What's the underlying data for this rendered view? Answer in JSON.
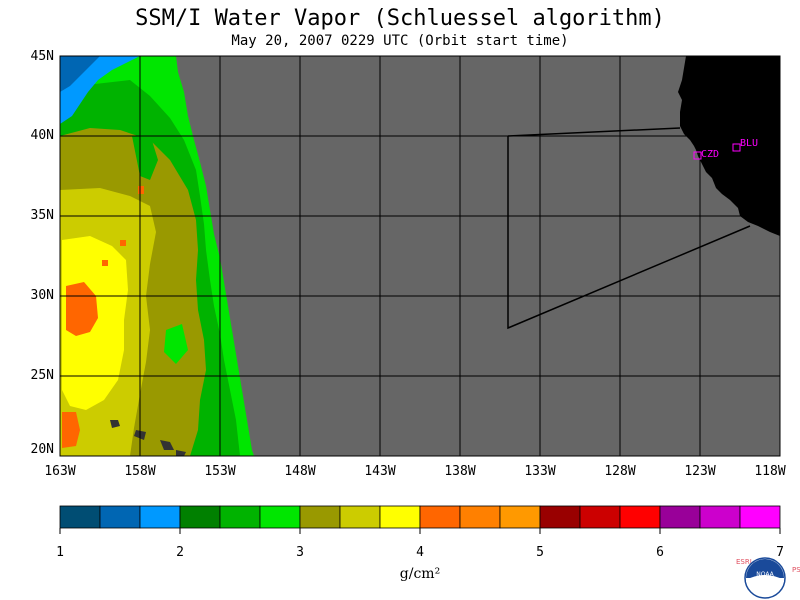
{
  "title": "SSM/I Water Vapor (Schluessel algorithm)",
  "subtitle": "May 20, 2007  0229 UTC  (Orbit start time)",
  "lat_labels": [
    "45N",
    "40N",
    "35N",
    "30N",
    "25N",
    "20N"
  ],
  "lon_labels": [
    "163W",
    "158W",
    "153W",
    "148W",
    "143W",
    "138W",
    "133W",
    "128W",
    "123W",
    "118W"
  ],
  "colorbar": {
    "colors": [
      "#004d73",
      "#0066b3",
      "#0099ff",
      "#008000",
      "#00b300",
      "#00e600",
      "#999900",
      "#cccc00",
      "#ffff00",
      "#ff6600",
      "#ff8000",
      "#ff9900",
      "#990000",
      "#cc0000",
      "#ff0000",
      "#990099",
      "#cc00cc",
      "#ff00ff"
    ],
    "tick_labels": [
      "1",
      "2",
      "3",
      "4",
      "5",
      "6",
      "7"
    ],
    "unit": "g/cm²"
  },
  "stations": [
    {
      "code": "CZD"
    },
    {
      "code": "BLU"
    }
  ],
  "logo": {
    "text": "NOAA",
    "left_letters": "ESRL",
    "right_letters": "PSD"
  }
}
